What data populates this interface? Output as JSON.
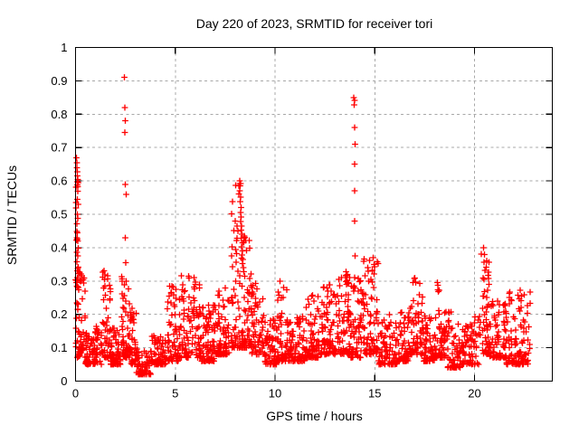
{
  "chart_data": {
    "type": "scatter",
    "title": "Day 220 of 2023, SRMTID for receiver tori",
    "xlabel": "GPS time / hours",
    "ylabel": "SRMTID / TECUs",
    "xlim": [
      0,
      23.9
    ],
    "ylim": [
      0,
      1
    ],
    "xticks": [
      {
        "v": 0,
        "label": "0"
      },
      {
        "v": 5,
        "label": "5"
      },
      {
        "v": 10,
        "label": "10"
      },
      {
        "v": 15,
        "label": "15"
      },
      {
        "v": 20,
        "label": "20"
      }
    ],
    "yticks": [
      {
        "v": 0,
        "label": "0"
      },
      {
        "v": 0.1,
        "label": "0.1"
      },
      {
        "v": 0.2,
        "label": "0.2"
      },
      {
        "v": 0.3,
        "label": "0.3"
      },
      {
        "v": 0.4,
        "label": "0.4"
      },
      {
        "v": 0.5,
        "label": "0.5"
      },
      {
        "v": 0.6,
        "label": "0.6"
      },
      {
        "v": 0.7,
        "label": "0.7"
      },
      {
        "v": 0.8,
        "label": "0.8"
      },
      {
        "v": 0.9,
        "label": "0.9"
      },
      {
        "v": 1,
        "label": "1"
      }
    ],
    "grid": true,
    "legend": "none",
    "marker": {
      "shape": "plus",
      "color": "#ff0000",
      "half_size": 3.4
    },
    "seed": 20230811,
    "y_bias_power": 2.2,
    "band_segments": [
      [
        0.0,
        0.15,
        25,
        0.28,
        0.68
      ],
      [
        0.0,
        0.5,
        60,
        0.07,
        0.33
      ],
      [
        0.5,
        1.3,
        90,
        0.05,
        0.17
      ],
      [
        1.3,
        1.75,
        50,
        0.07,
        0.33
      ],
      [
        1.75,
        2.25,
        60,
        0.05,
        0.16
      ],
      [
        2.3,
        2.75,
        60,
        0.07,
        0.34
      ],
      [
        2.75,
        3.05,
        40,
        0.05,
        0.22
      ],
      [
        3.05,
        3.8,
        70,
        0.02,
        0.1
      ],
      [
        3.8,
        4.6,
        70,
        0.05,
        0.14
      ],
      [
        4.6,
        5.15,
        60,
        0.06,
        0.3
      ],
      [
        5.15,
        6.3,
        110,
        0.07,
        0.32
      ],
      [
        6.3,
        7.0,
        80,
        0.06,
        0.25
      ],
      [
        7.0,
        7.7,
        80,
        0.08,
        0.28
      ],
      [
        7.8,
        8.3,
        60,
        0.1,
        0.6
      ],
      [
        8.3,
        8.8,
        60,
        0.1,
        0.45
      ],
      [
        8.8,
        9.4,
        60,
        0.08,
        0.3
      ],
      [
        9.4,
        10.1,
        70,
        0.05,
        0.2
      ],
      [
        10.1,
        10.6,
        50,
        0.06,
        0.3
      ],
      [
        10.6,
        11.5,
        90,
        0.06,
        0.2
      ],
      [
        11.5,
        12.2,
        80,
        0.07,
        0.26
      ],
      [
        12.2,
        13.1,
        90,
        0.08,
        0.3
      ],
      [
        13.1,
        13.8,
        80,
        0.08,
        0.33
      ],
      [
        13.8,
        14.35,
        60,
        0.07,
        0.32
      ],
      [
        14.35,
        15.2,
        80,
        0.08,
        0.37
      ],
      [
        15.2,
        16.1,
        80,
        0.05,
        0.2
      ],
      [
        16.1,
        16.7,
        60,
        0.06,
        0.22
      ],
      [
        16.7,
        17.4,
        70,
        0.08,
        0.31
      ],
      [
        17.4,
        18.0,
        60,
        0.06,
        0.22
      ],
      [
        18.0,
        18.6,
        60,
        0.07,
        0.3
      ],
      [
        18.6,
        19.3,
        60,
        0.04,
        0.22
      ],
      [
        19.3,
        20.3,
        80,
        0.05,
        0.2
      ],
      [
        20.3,
        20.75,
        50,
        0.08,
        0.42
      ],
      [
        20.75,
        21.6,
        80,
        0.07,
        0.24
      ],
      [
        21.6,
        22.8,
        110,
        0.05,
        0.27
      ]
    ],
    "outliers": [
      [
        0.05,
        0.67
      ],
      [
        0.07,
        0.655
      ],
      [
        0.06,
        0.64
      ],
      [
        0.09,
        0.628
      ],
      [
        0.08,
        0.615
      ],
      [
        0.11,
        0.604
      ],
      [
        0.09,
        0.598
      ],
      [
        0.13,
        0.595
      ],
      [
        0.1,
        0.588
      ],
      [
        0.12,
        0.582
      ],
      [
        0.08,
        0.545
      ],
      [
        0.1,
        0.5
      ],
      [
        0.12,
        0.488
      ],
      [
        0.09,
        0.445
      ],
      [
        0.11,
        0.42
      ],
      [
        0.13,
        0.398
      ],
      [
        0.1,
        0.33
      ],
      [
        0.28,
        0.3
      ],
      [
        1.42,
        0.33
      ],
      [
        1.45,
        0.305
      ],
      [
        1.48,
        0.285
      ],
      [
        2.45,
        0.91
      ],
      [
        2.48,
        0.82
      ],
      [
        2.5,
        0.78
      ],
      [
        2.47,
        0.745
      ],
      [
        2.5,
        0.59
      ],
      [
        2.53,
        0.56
      ],
      [
        2.49,
        0.43
      ],
      [
        2.51,
        0.355
      ],
      [
        2.55,
        0.3
      ],
      [
        5.95,
        0.31
      ],
      [
        6.0,
        0.29
      ],
      [
        8.22,
        0.6
      ],
      [
        8.26,
        0.585
      ],
      [
        8.24,
        0.57
      ],
      [
        8.28,
        0.552
      ],
      [
        8.25,
        0.538
      ],
      [
        8.3,
        0.52
      ],
      [
        8.27,
        0.505
      ],
      [
        8.31,
        0.492
      ],
      [
        8.28,
        0.478
      ],
      [
        8.33,
        0.465
      ],
      [
        8.3,
        0.452
      ],
      [
        8.34,
        0.44
      ],
      [
        8.31,
        0.428
      ],
      [
        8.36,
        0.415
      ],
      [
        8.33,
        0.402
      ],
      [
        8.37,
        0.39
      ],
      [
        8.35,
        0.378
      ],
      [
        8.4,
        0.365
      ],
      [
        8.37,
        0.352
      ],
      [
        8.42,
        0.34
      ],
      [
        8.44,
        0.328
      ],
      [
        8.47,
        0.315
      ],
      [
        10.25,
        0.3
      ],
      [
        13.95,
        0.85
      ],
      [
        14.0,
        0.842
      ],
      [
        13.97,
        0.828
      ],
      [
        13.99,
        0.76
      ],
      [
        14.01,
        0.71
      ],
      [
        13.98,
        0.65
      ],
      [
        14.0,
        0.57
      ],
      [
        13.99,
        0.48
      ],
      [
        14.01,
        0.375
      ],
      [
        13.98,
        0.31
      ],
      [
        14.92,
        0.37
      ],
      [
        14.97,
        0.35
      ],
      [
        14.88,
        0.332
      ],
      [
        16.98,
        0.308
      ],
      [
        17.05,
        0.295
      ],
      [
        18.15,
        0.295
      ],
      [
        18.22,
        0.272
      ],
      [
        20.45,
        0.4
      ],
      [
        20.5,
        0.38
      ],
      [
        20.48,
        0.356
      ],
      [
        20.53,
        0.332
      ],
      [
        20.47,
        0.305
      ],
      [
        22.3,
        0.272
      ],
      [
        22.35,
        0.255
      ]
    ]
  },
  "colors": {
    "background": "#ffffff",
    "marker": "#ff0000",
    "grid": "#a8a8a8",
    "axis": "#000000",
    "text": "#000000"
  }
}
